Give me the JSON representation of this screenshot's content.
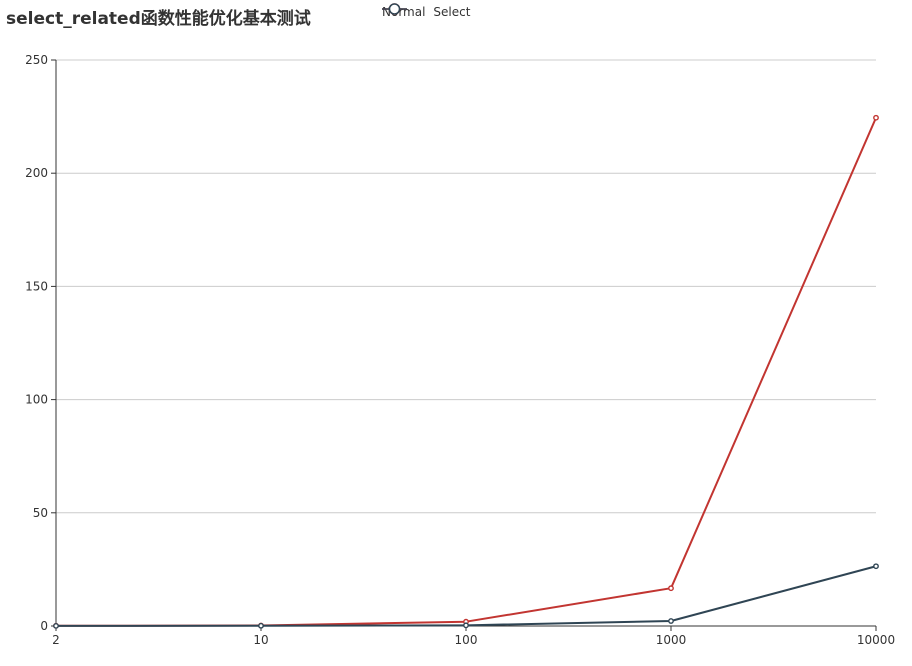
{
  "chart_data": {
    "type": "line",
    "title": "select_related函数性能优化基本测试",
    "categories": [
      "2",
      "10",
      "100",
      "1000",
      "10000"
    ],
    "series": [
      {
        "name": "Normal",
        "color": "#c23531",
        "values": [
          0.1,
          0.2,
          1.9,
          16.7,
          224.5
        ]
      },
      {
        "name": "Select",
        "color": "#2f4554",
        "values": [
          0.05,
          0.1,
          0.3,
          2.2,
          26.4
        ]
      }
    ],
    "xlabel": "",
    "ylabel": "",
    "ylim": [
      0,
      250
    ],
    "yticks": [
      0,
      50,
      100,
      150,
      200,
      250
    ],
    "grid": true,
    "legend": "top-center"
  }
}
